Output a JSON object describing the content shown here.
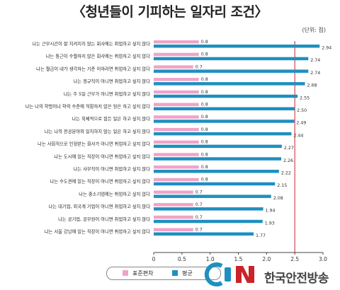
{
  "title": "〈청년들이 기피하는 일자리 조건〉",
  "unit": "(단위: 점)",
  "watermark": {
    "brand": "CSBN",
    "text": "한국안전방송"
  },
  "colors": {
    "mean": "#1f8fc0",
    "sd": "#f0a3c8",
    "refline": "#cc2229",
    "axis": "#444444"
  },
  "chart_data": {
    "type": "bar",
    "orientation": "horizontal",
    "categories": [
      "나는 근무시간이 잘 지켜지지 않는 회사에는 취업하고 싶지 않다",
      "나는 통근이 수월하지 않은 회사에는 취업하고 싶지 않다",
      "나는 월급이 내가 생각하는 기준 이하라면 취업하고 싶지 않다",
      "나는 정규직이 아니면 취업하고 싶지 않다",
      "나는 주 5일 근무가 아니면 취업하고 싶지 않다",
      "나는 나의 학벌이나 학력 수준에 적합하지 않은 일은 하고 싶지 않다",
      "나는 육체적으로 힘든 일은 하고 싶지 않다",
      "나는 나의 전공분야와 일치하지 않는 일은 하고 싶지 않다",
      "나는 사회적으로 인정받는 회사가 아니면 취업하고 싶지 않다",
      "나는 도시에 있는 직장이 아니면 취업하고 싶지 않다",
      "나는 사무직이 아니면 취업하고 싶지 않다",
      "나는 수도권에 있는 직장이 아니면 취업하고 싶지 않다",
      "나는 중소기업에는 취업하고 싶지 않다",
      "나는 대기업, 외국계 기업이 아니면 취업하고 싶지 않다",
      "나는 공기업, 공무원이 아니면 취업하고 싶지 않다",
      "나는 서울 강남에 있는 직장이 아니면 취업하고 싶지 않다"
    ],
    "series": [
      {
        "name": "표준편차",
        "color": "#f0a3c8",
        "values": [
          0.8,
          0.8,
          0.7,
          0.8,
          0.8,
          0.8,
          0.8,
          0.8,
          0.8,
          0.8,
          0.8,
          0.8,
          0.7,
          0.7,
          0.7,
          0.7
        ]
      },
      {
        "name": "평균",
        "color": "#1f8fc0",
        "values": [
          2.94,
          2.74,
          2.74,
          2.68,
          2.55,
          2.5,
          2.49,
          2.44,
          2.27,
          2.26,
          2.22,
          2.15,
          2.08,
          1.94,
          1.93,
          1.77
        ]
      }
    ],
    "value_labels": {
      "sd": [
        "0.8",
        "0.8",
        "0.7",
        "0.8",
        "0.8",
        "0.8",
        "0.8",
        "0.8",
        "0.8",
        "0.8",
        "0.8",
        "0.8",
        "0.7",
        "0.7",
        "0.7",
        "0.7"
      ],
      "mean": [
        "2.94",
        "2.74",
        "2.74",
        "2.68",
        "2.55",
        "2.50",
        "2.49",
        "2.44",
        "2.27",
        "2.26",
        "2.22",
        "2.15",
        "2.08",
        "1.94",
        "1.93",
        "1.77"
      ]
    },
    "xticks": [
      "0",
      "0.5",
      "1.0",
      "1.5",
      "2.0",
      "2.5",
      "3.0"
    ],
    "xlim": [
      0,
      3
    ],
    "reference_line": 2.5,
    "legend": {
      "position": "bottom-center",
      "items": [
        "표준편차",
        "평균"
      ]
    },
    "grid": false
  }
}
